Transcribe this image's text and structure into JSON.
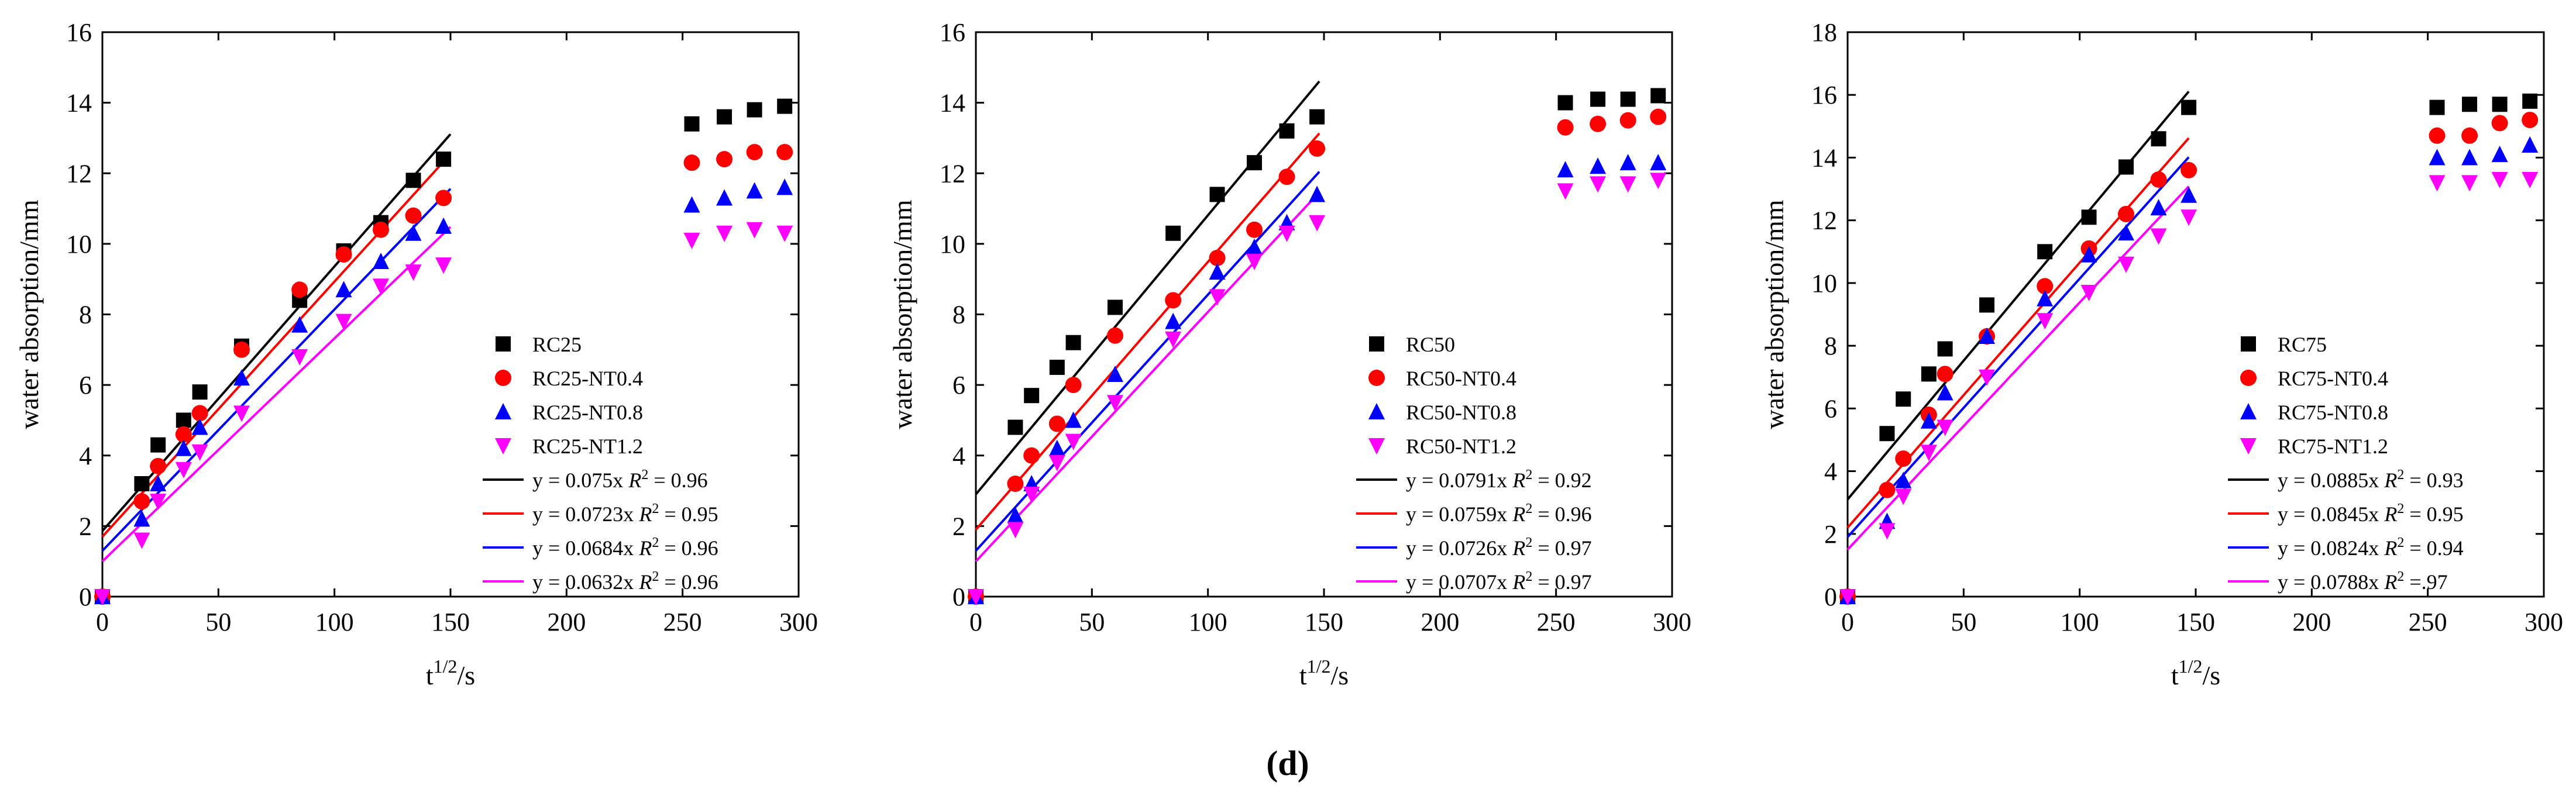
{
  "figure": {
    "panel_label": "(d)"
  },
  "chart_data": [
    {
      "type": "scatter",
      "title": "",
      "xlabel": "t1/2/s",
      "ylabel": "water absorption/mm",
      "xlim": [
        0,
        300
      ],
      "ylim": [
        0,
        16
      ],
      "xticks": [
        0,
        50,
        100,
        150,
        200,
        250,
        300
      ],
      "yticks": [
        0,
        2,
        4,
        6,
        8,
        10,
        12,
        14,
        16
      ],
      "grid": false,
      "legend_position": "right-middle",
      "series": [
        {
          "name": "RC25",
          "marker": "square",
          "color": "#000000",
          "x": [
            0,
            17,
            24,
            35,
            42,
            60,
            85,
            104,
            120,
            134,
            147,
            254,
            268,
            281,
            294
          ],
          "y": [
            0,
            3.2,
            4.3,
            5.0,
            5.8,
            7.1,
            8.4,
            9.8,
            10.6,
            11.8,
            12.4,
            13.4,
            13.6,
            13.8,
            13.9
          ]
        },
        {
          "name": "RC25-NT0.4",
          "marker": "circle",
          "color": "#ff0000",
          "x": [
            0,
            17,
            24,
            35,
            42,
            60,
            85,
            104,
            120,
            134,
            147,
            254,
            268,
            281,
            294
          ],
          "y": [
            0,
            2.7,
            3.7,
            4.6,
            5.2,
            7.0,
            8.7,
            9.7,
            10.4,
            10.8,
            11.3,
            12.3,
            12.4,
            12.6,
            12.6
          ]
        },
        {
          "name": "RC25-NT0.8",
          "marker": "triangle-up",
          "color": "#0000ff",
          "x": [
            0,
            17,
            24,
            35,
            42,
            60,
            85,
            104,
            120,
            134,
            147,
            254,
            268,
            281,
            294
          ],
          "y": [
            0,
            2.2,
            3.2,
            4.2,
            4.8,
            6.2,
            7.7,
            8.7,
            9.5,
            10.3,
            10.5,
            11.1,
            11.3,
            11.5,
            11.6
          ]
        },
        {
          "name": "RC25-NT1.2",
          "marker": "triangle-down",
          "color": "#ff00ff",
          "x": [
            0,
            17,
            24,
            35,
            42,
            60,
            85,
            104,
            120,
            134,
            147,
            254,
            268,
            281,
            294
          ],
          "y": [
            0,
            1.6,
            2.7,
            3.6,
            4.1,
            5.2,
            6.8,
            7.8,
            8.8,
            9.2,
            9.4,
            10.1,
            10.3,
            10.4,
            10.3
          ]
        }
      ],
      "fits": [
        {
          "name": "RC25 fit",
          "color": "#000000",
          "slope": 0.075,
          "intercept": 1.86,
          "x_range": [
            0,
            150
          ],
          "equation": "y = 0.075x",
          "r2_label": "R",
          "r2_value": "= 0.96"
        },
        {
          "name": "RC25-NT0.4 fit",
          "color": "#ff0000",
          "slope": 0.0723,
          "intercept": 1.7,
          "x_range": [
            0,
            150
          ],
          "equation": "y = 0.0723x",
          "r2_label": "R",
          "r2_value": "= 0.95"
        },
        {
          "name": "RC25-NT0.8 fit",
          "color": "#0000ff",
          "slope": 0.0684,
          "intercept": 1.3,
          "x_range": [
            0,
            150
          ],
          "equation": "y = 0.0684x",
          "r2_label": "R",
          "r2_value": "= 0.96"
        },
        {
          "name": "RC25-NT1.2 fit",
          "color": "#ff00ff",
          "slope": 0.0632,
          "intercept": 1.0,
          "x_range": [
            0,
            150
          ],
          "equation": "y = 0.0632x",
          "r2_label": "R",
          "r2_value": "= 0.96"
        }
      ]
    },
    {
      "type": "scatter",
      "title": "",
      "xlabel": "t1/2/s",
      "ylabel": "water absorption/mm",
      "xlim": [
        0,
        300
      ],
      "ylim": [
        0,
        16
      ],
      "xticks": [
        0,
        50,
        100,
        150,
        200,
        250,
        300
      ],
      "yticks": [
        0,
        2,
        4,
        6,
        8,
        10,
        12,
        14,
        16
      ],
      "grid": false,
      "legend_position": "right-middle",
      "series": [
        {
          "name": "RC50",
          "marker": "square",
          "color": "#000000",
          "x": [
            0,
            17,
            24,
            35,
            42,
            60,
            85,
            104,
            120,
            134,
            147,
            254,
            268,
            281,
            294
          ],
          "y": [
            0,
            4.8,
            5.7,
            6.5,
            7.2,
            8.2,
            10.3,
            11.4,
            12.3,
            13.2,
            13.6,
            14.0,
            14.1,
            14.1,
            14.2
          ]
        },
        {
          "name": "RC50-NT0.4",
          "marker": "circle",
          "color": "#ff0000",
          "x": [
            0,
            17,
            24,
            35,
            42,
            60,
            85,
            104,
            120,
            134,
            147,
            254,
            268,
            281,
            294
          ],
          "y": [
            0,
            3.2,
            4.0,
            4.9,
            6.0,
            7.4,
            8.4,
            9.6,
            10.4,
            11.9,
            12.7,
            13.3,
            13.4,
            13.5,
            13.6
          ]
        },
        {
          "name": "RC50-NT0.8",
          "marker": "triangle-up",
          "color": "#0000ff",
          "x": [
            0,
            17,
            24,
            35,
            42,
            60,
            85,
            104,
            120,
            134,
            147,
            254,
            268,
            281,
            294
          ],
          "y": [
            0,
            2.3,
            3.2,
            4.2,
            5.0,
            6.3,
            7.8,
            9.2,
            9.9,
            10.6,
            11.4,
            12.1,
            12.2,
            12.3,
            12.3
          ]
        },
        {
          "name": "RC50-NT1.2",
          "marker": "triangle-down",
          "color": "#ff00ff",
          "x": [
            0,
            17,
            24,
            35,
            42,
            60,
            85,
            104,
            120,
            134,
            147,
            254,
            268,
            281,
            294
          ],
          "y": [
            0,
            1.9,
            2.9,
            3.8,
            4.4,
            5.5,
            7.3,
            8.5,
            9.5,
            10.3,
            10.6,
            11.5,
            11.7,
            11.7,
            11.8
          ]
        }
      ],
      "fits": [
        {
          "name": "RC50 fit",
          "color": "#000000",
          "slope": 0.0791,
          "intercept": 2.9,
          "x_range": [
            0,
            148
          ],
          "equation": "y = 0.0791x",
          "r2_label": "R",
          "r2_value": "= 0.92"
        },
        {
          "name": "RC50-NT0.4 fit",
          "color": "#ff0000",
          "slope": 0.0759,
          "intercept": 1.9,
          "x_range": [
            0,
            148
          ],
          "equation": "y = 0.0759x",
          "r2_label": "R",
          "r2_value": "= 0.96"
        },
        {
          "name": "RC50-NT0.8 fit",
          "color": "#0000ff",
          "slope": 0.0726,
          "intercept": 1.3,
          "x_range": [
            0,
            148
          ],
          "equation": "y = 0.0726x",
          "r2_label": "R",
          "r2_value": "= 0.97"
        },
        {
          "name": "RC50-NT1.2 fit",
          "color": "#ff00ff",
          "slope": 0.0707,
          "intercept": 1.0,
          "x_range": [
            0,
            148
          ],
          "equation": "y = 0.0707x",
          "r2_label": "R",
          "r2_value": "= 0.97"
        }
      ]
    },
    {
      "type": "scatter",
      "title": "",
      "xlabel": "t1/2/s",
      "ylabel": "water absorption/mm",
      "xlim": [
        0,
        300
      ],
      "ylim": [
        0,
        18
      ],
      "xticks": [
        0,
        50,
        100,
        150,
        200,
        250,
        300
      ],
      "yticks": [
        0,
        2,
        4,
        6,
        8,
        10,
        12,
        14,
        16,
        18
      ],
      "grid": false,
      "legend_position": "right-middle",
      "series": [
        {
          "name": "RC75",
          "marker": "square",
          "color": "#000000",
          "x": [
            0,
            17,
            24,
            35,
            42,
            60,
            85,
            104,
            120,
            134,
            147,
            254,
            268,
            281,
            294
          ],
          "y": [
            0,
            5.2,
            6.3,
            7.1,
            7.9,
            9.3,
            11.0,
            12.1,
            13.7,
            14.6,
            15.6,
            15.6,
            15.7,
            15.7,
            15.8
          ]
        },
        {
          "name": "RC75-NT0.4",
          "marker": "circle",
          "color": "#ff0000",
          "x": [
            0,
            17,
            24,
            35,
            42,
            60,
            85,
            104,
            120,
            134,
            147,
            254,
            268,
            281,
            294
          ],
          "y": [
            0,
            3.4,
            4.4,
            5.8,
            7.1,
            8.3,
            9.9,
            11.1,
            12.2,
            13.3,
            13.6,
            14.7,
            14.7,
            15.1,
            15.2
          ]
        },
        {
          "name": "RC75-NT0.8",
          "marker": "triangle-up",
          "color": "#0000ff",
          "x": [
            0,
            17,
            24,
            35,
            42,
            60,
            85,
            104,
            120,
            134,
            147,
            254,
            268,
            281,
            294
          ],
          "y": [
            0,
            2.4,
            3.7,
            5.6,
            6.5,
            8.3,
            9.5,
            10.9,
            11.6,
            12.4,
            12.8,
            14.0,
            14.0,
            14.1,
            14.4
          ]
        },
        {
          "name": "RC75-NT1.2",
          "marker": "triangle-down",
          "color": "#ff00ff",
          "x": [
            0,
            17,
            24,
            35,
            42,
            60,
            85,
            104,
            120,
            134,
            147,
            254,
            268,
            281,
            294
          ],
          "y": [
            0,
            2.1,
            3.2,
            4.6,
            5.4,
            7.0,
            8.8,
            9.7,
            10.6,
            11.5,
            12.1,
            13.2,
            13.2,
            13.3,
            13.3
          ]
        }
      ],
      "fits": [
        {
          "name": "RC75 fit",
          "color": "#000000",
          "slope": 0.0885,
          "intercept": 3.1,
          "x_range": [
            0,
            147
          ],
          "equation": "y = 0.0885x",
          "r2_label": "R",
          "r2_value": "= 0.93"
        },
        {
          "name": "RC75-NT0.4 fit",
          "color": "#ff0000",
          "slope": 0.0845,
          "intercept": 2.2,
          "x_range": [
            0,
            147
          ],
          "equation": "y = 0.0845x",
          "r2_label": "R",
          "r2_value": "= 0.95"
        },
        {
          "name": "RC75-NT0.8 fit",
          "color": "#0000ff",
          "slope": 0.0824,
          "intercept": 1.9,
          "x_range": [
            0,
            147
          ],
          "equation": "y = 0.0824x",
          "r2_label": "R",
          "r2_value": "= 0.94"
        },
        {
          "name": "RC75-NT1.2 fit",
          "color": "#ff00ff",
          "slope": 0.0788,
          "intercept": 1.5,
          "x_range": [
            0,
            147
          ],
          "equation": "y = 0.0788x",
          "r2_label": "R",
          "r2_value": "=.97"
        }
      ]
    }
  ]
}
